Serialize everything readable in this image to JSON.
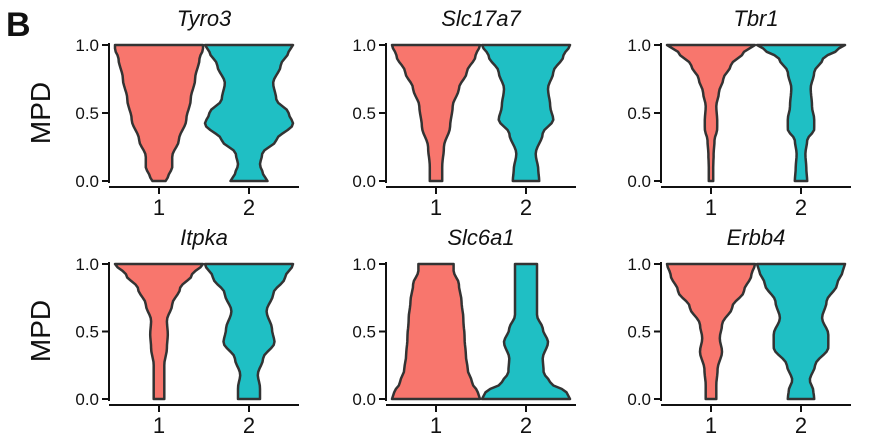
{
  "figure": {
    "panel_letter": "B",
    "row_ylabels": [
      "MPD",
      "MPD"
    ]
  },
  "colors": {
    "group_1": "#F8766D",
    "group_2": "#1FBFC4",
    "outline": "#333333",
    "axis": "#111111"
  },
  "chart_data": [
    {
      "type": "violin",
      "title": "Tyro3",
      "ylabel": "MPD",
      "xlabel": "",
      "categories": [
        "1",
        "2"
      ],
      "ylim": [
        0,
        1.0
      ],
      "yticks": [
        "0.0",
        "0.5",
        "1.0"
      ],
      "grid": false,
      "series": [
        {
          "profile": [
            [
              0.0,
              0.15
            ],
            [
              0.04,
              0.22
            ],
            [
              0.1,
              0.3
            ],
            [
              0.18,
              0.3
            ],
            [
              0.3,
              0.45
            ],
            [
              0.45,
              0.62
            ],
            [
              0.6,
              0.72
            ],
            [
              0.75,
              0.82
            ],
            [
              0.9,
              0.92
            ],
            [
              0.97,
              1.0
            ],
            [
              1.0,
              1.0
            ]
          ]
        },
        {
          "profile": [
            [
              0.0,
              0.42
            ],
            [
              0.05,
              0.32
            ],
            [
              0.12,
              0.25
            ],
            [
              0.2,
              0.3
            ],
            [
              0.3,
              0.62
            ],
            [
              0.42,
              1.0
            ],
            [
              0.5,
              0.9
            ],
            [
              0.6,
              0.62
            ],
            [
              0.72,
              0.55
            ],
            [
              0.85,
              0.72
            ],
            [
              0.95,
              0.9
            ],
            [
              1.0,
              1.0
            ]
          ]
        }
      ]
    },
    {
      "type": "violin",
      "title": "Slc17a7",
      "ylabel": "MPD",
      "xlabel": "",
      "categories": [
        "1",
        "2"
      ],
      "ylim": [
        0,
        1.0
      ],
      "yticks": [
        "0.0",
        "0.5",
        "1.0"
      ],
      "grid": false,
      "series": [
        {
          "profile": [
            [
              0.0,
              0.14
            ],
            [
              0.1,
              0.14
            ],
            [
              0.25,
              0.18
            ],
            [
              0.4,
              0.32
            ],
            [
              0.55,
              0.38
            ],
            [
              0.68,
              0.52
            ],
            [
              0.8,
              0.7
            ],
            [
              0.92,
              0.9
            ],
            [
              1.0,
              1.0
            ]
          ]
        },
        {
          "profile": [
            [
              0.0,
              0.3
            ],
            [
              0.08,
              0.28
            ],
            [
              0.2,
              0.22
            ],
            [
              0.35,
              0.38
            ],
            [
              0.45,
              0.62
            ],
            [
              0.55,
              0.55
            ],
            [
              0.68,
              0.5
            ],
            [
              0.8,
              0.62
            ],
            [
              0.92,
              0.85
            ],
            [
              1.0,
              1.0
            ]
          ]
        }
      ]
    },
    {
      "type": "violin",
      "title": "Tbr1",
      "ylabel": "MPD",
      "xlabel": "",
      "categories": [
        "1",
        "2"
      ],
      "ylim": [
        0,
        1.0
      ],
      "yticks": [
        "0.0",
        "0.5",
        "1.0"
      ],
      "grid": false,
      "series": [
        {
          "profile": [
            [
              0.0,
              0.05
            ],
            [
              0.1,
              0.05
            ],
            [
              0.2,
              0.06
            ],
            [
              0.3,
              0.08
            ],
            [
              0.38,
              0.14
            ],
            [
              0.45,
              0.14
            ],
            [
              0.55,
              0.12
            ],
            [
              0.65,
              0.18
            ],
            [
              0.75,
              0.28
            ],
            [
              0.85,
              0.45
            ],
            [
              0.95,
              0.75
            ],
            [
              1.0,
              1.0
            ]
          ]
        },
        {
          "profile": [
            [
              0.0,
              0.14
            ],
            [
              0.1,
              0.12
            ],
            [
              0.2,
              0.1
            ],
            [
              0.3,
              0.14
            ],
            [
              0.38,
              0.3
            ],
            [
              0.45,
              0.3
            ],
            [
              0.55,
              0.25
            ],
            [
              0.68,
              0.22
            ],
            [
              0.8,
              0.3
            ],
            [
              0.9,
              0.5
            ],
            [
              0.97,
              0.85
            ],
            [
              1.0,
              1.0
            ]
          ]
        }
      ]
    },
    {
      "type": "violin",
      "title": "Itpka",
      "ylabel": "MPD",
      "xlabel": "",
      "categories": [
        "1",
        "2"
      ],
      "ylim": [
        0,
        1.0
      ],
      "yticks": [
        "0.0",
        "0.5",
        "1.0"
      ],
      "grid": false,
      "series": [
        {
          "profile": [
            [
              0.0,
              0.12
            ],
            [
              0.1,
              0.12
            ],
            [
              0.25,
              0.12
            ],
            [
              0.38,
              0.18
            ],
            [
              0.48,
              0.2
            ],
            [
              0.58,
              0.18
            ],
            [
              0.7,
              0.3
            ],
            [
              0.82,
              0.48
            ],
            [
              0.92,
              0.75
            ],
            [
              1.0,
              1.0
            ]
          ]
        },
        {
          "profile": [
            [
              0.0,
              0.25
            ],
            [
              0.08,
              0.25
            ],
            [
              0.18,
              0.2
            ],
            [
              0.3,
              0.32
            ],
            [
              0.42,
              0.58
            ],
            [
              0.52,
              0.52
            ],
            [
              0.65,
              0.4
            ],
            [
              0.78,
              0.55
            ],
            [
              0.9,
              0.82
            ],
            [
              1.0,
              1.0
            ]
          ]
        }
      ]
    },
    {
      "type": "violin",
      "title": "Slc6a1",
      "ylabel": "MPD",
      "xlabel": "",
      "categories": [
        "1",
        "2"
      ],
      "ylim": [
        0,
        1.0
      ],
      "yticks": [
        "0.0",
        "0.5",
        "1.0"
      ],
      "grid": false,
      "series": [
        {
          "profile": [
            [
              0.0,
              1.0
            ],
            [
              0.05,
              0.95
            ],
            [
              0.12,
              0.82
            ],
            [
              0.22,
              0.72
            ],
            [
              0.32,
              0.68
            ],
            [
              0.45,
              0.65
            ],
            [
              0.6,
              0.62
            ],
            [
              0.72,
              0.58
            ],
            [
              0.85,
              0.52
            ],
            [
              0.95,
              0.4
            ],
            [
              1.0,
              0.4
            ]
          ]
        },
        {
          "profile": [
            [
              0.0,
              1.0
            ],
            [
              0.05,
              0.92
            ],
            [
              0.12,
              0.55
            ],
            [
              0.2,
              0.4
            ],
            [
              0.3,
              0.38
            ],
            [
              0.42,
              0.5
            ],
            [
              0.52,
              0.38
            ],
            [
              0.62,
              0.25
            ],
            [
              0.75,
              0.25
            ],
            [
              0.88,
              0.25
            ],
            [
              1.0,
              0.25
            ]
          ]
        }
      ]
    },
    {
      "type": "violin",
      "title": "Erbb4",
      "ylabel": "MPD",
      "xlabel": "",
      "categories": [
        "1",
        "2"
      ],
      "ylim": [
        0,
        1.0
      ],
      "yticks": [
        "0.0",
        "0.5",
        "1.0"
      ],
      "grid": false,
      "series": [
        {
          "profile": [
            [
              0.0,
              0.12
            ],
            [
              0.1,
              0.12
            ],
            [
              0.22,
              0.15
            ],
            [
              0.35,
              0.25
            ],
            [
              0.45,
              0.2
            ],
            [
              0.55,
              0.25
            ],
            [
              0.68,
              0.48
            ],
            [
              0.8,
              0.75
            ],
            [
              0.92,
              0.92
            ],
            [
              1.0,
              1.0
            ]
          ]
        },
        {
          "profile": [
            [
              0.0,
              0.3
            ],
            [
              0.06,
              0.28
            ],
            [
              0.14,
              0.2
            ],
            [
              0.25,
              0.32
            ],
            [
              0.38,
              0.62
            ],
            [
              0.48,
              0.62
            ],
            [
              0.6,
              0.48
            ],
            [
              0.72,
              0.58
            ],
            [
              0.85,
              0.82
            ],
            [
              0.95,
              0.95
            ],
            [
              1.0,
              1.0
            ]
          ]
        }
      ]
    }
  ]
}
